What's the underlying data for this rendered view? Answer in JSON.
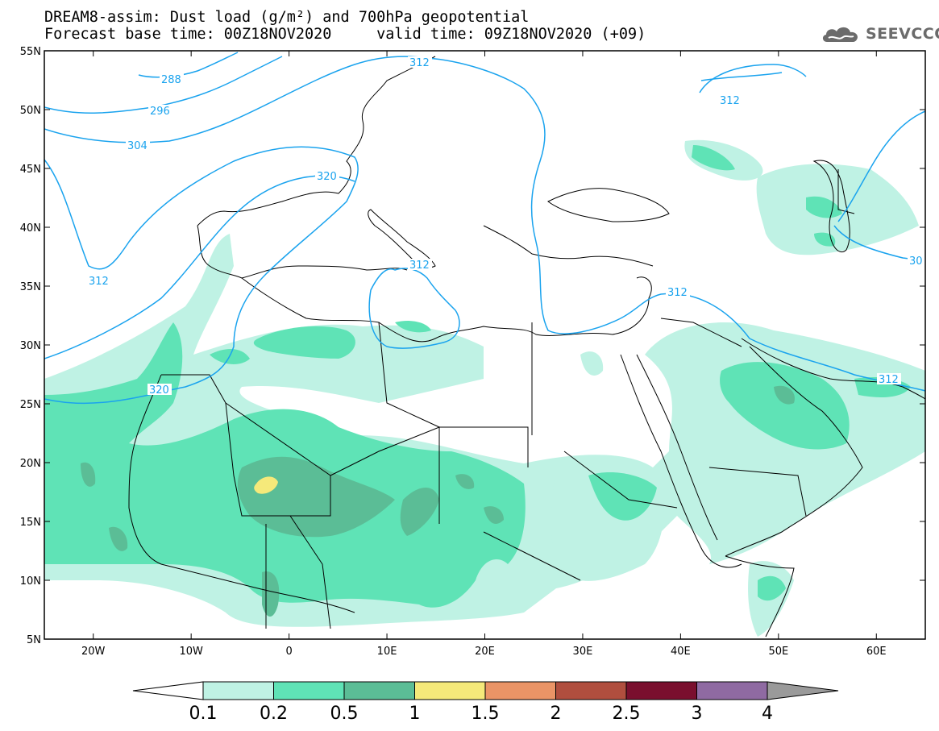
{
  "header": {
    "line1": "DREAM8-assim: Dust load (g/m²) and 700hPa geopotential",
    "line2": "Forecast base time: 00Z18NOV2020     valid time: 09Z18NOV2020 (+09)"
  },
  "logo": {
    "text": "SEEVCCC",
    "icon": "cloud-logo-icon"
  },
  "map": {
    "lon_range": [
      -25,
      65
    ],
    "lat_range": [
      5,
      55
    ],
    "lon_ticks": [
      "20W",
      "10W",
      "0",
      "10E",
      "20E",
      "30E",
      "40E",
      "50E",
      "60E"
    ],
    "lat_ticks": [
      "55N",
      "50N",
      "45N",
      "40N",
      "35N",
      "30N",
      "25N",
      "20N",
      "15N",
      "10N",
      "5N"
    ],
    "contour_labels": [
      "288",
      "296",
      "304",
      "312",
      "320",
      "312",
      "312",
      "312",
      "312",
      "312",
      "30"
    ]
  },
  "colorbar": {
    "labels": [
      "0.1",
      "0.2",
      "0.5",
      "1",
      "1.5",
      "2",
      "2.5",
      "3",
      "4"
    ],
    "colors": [
      "#bff2e4",
      "#5fe3b6",
      "#5bbd96",
      "#f5e97a",
      "#ea9466",
      "#b04e3e",
      "#7a0f2e",
      "#8f6aa2"
    ],
    "under_color": "#ffffff",
    "over_color": "#9a9a9a"
  }
}
